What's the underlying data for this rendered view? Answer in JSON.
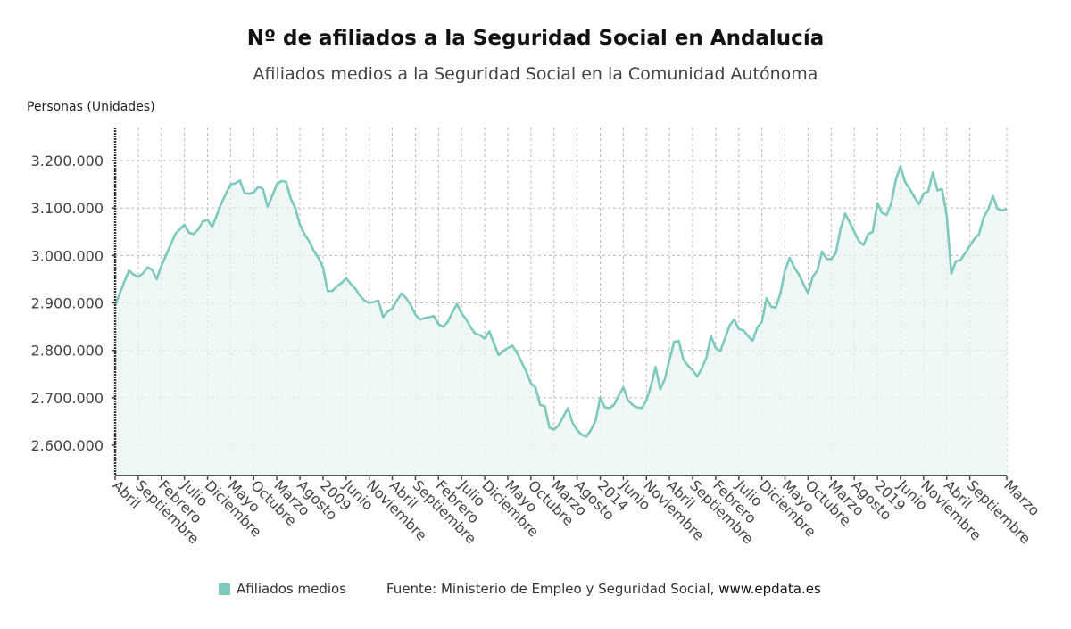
{
  "title": "Nº de afiliados a la Seguridad Social en Andalucía",
  "subtitle": "Afiliados medios a la Seguridad Social en la Comunidad Autónoma",
  "legend": {
    "label": "Afiliados medios",
    "color": "#7dc9bd"
  },
  "source": {
    "text": "Fuente: Ministerio de Empleo y Seguridad Social, ",
    "site": "www.epdata.es"
  },
  "chart_data": {
    "type": "area",
    "title": "Nº de afiliados a la Seguridad Social en Andalucía",
    "subtitle": "Afiliados medios a la Seguridad Social en la Comunidad Autónoma",
    "ylabel": "Personas (Unidades)",
    "xlabel": "",
    "ylim": [
      2540000,
      3270000
    ],
    "yticks": [
      2600000,
      2700000,
      2800000,
      2900000,
      3000000,
      3100000,
      3200000
    ],
    "ytick_labels": [
      "2.600.000",
      "2.700.000",
      "2.800.000",
      "2.900.000",
      "3.000.000",
      "3.100.000",
      "3.200.000"
    ],
    "grid": true,
    "legend_position": "bottom",
    "line_color": "#7dc9bd",
    "x_start": "Abril 2005",
    "x_end": "Marzo 2021",
    "x_tick_every_months": 5,
    "x_tick_labels": [
      "Abril",
      "Septiembre",
      "Febrero",
      "Julio",
      "Diciembre",
      "Mayo",
      "Octubre",
      "Marzo",
      "Agosto",
      "2009",
      "Junio",
      "Noviembre",
      "Abril",
      "Septiembre",
      "Febrero",
      "Julio",
      "Diciembre",
      "Mayo",
      "Octubre",
      "Marzo",
      "Agosto",
      "2014",
      "Junio",
      "Noviembre",
      "Abril",
      "Septiembre",
      "Febrero",
      "Julio",
      "Diciembre",
      "Mayo",
      "Octubre",
      "Marzo",
      "Agosto",
      "2019",
      "Junio",
      "Noviembre",
      "Abril",
      "Septiembre",
      "Marzo"
    ],
    "series": [
      {
        "name": "Afiliados medios",
        "values": [
          2895000,
          2920000,
          2945000,
          2968000,
          2960000,
          2955000,
          2962000,
          2975000,
          2970000,
          2950000,
          2978000,
          3000000,
          3022000,
          3045000,
          3055000,
          3065000,
          3048000,
          3045000,
          3055000,
          3072000,
          3075000,
          3060000,
          3085000,
          3110000,
          3130000,
          3150000,
          3152000,
          3158000,
          3132000,
          3130000,
          3133000,
          3145000,
          3140000,
          3103000,
          3125000,
          3150000,
          3157000,
          3155000,
          3120000,
          3100000,
          3065000,
          3045000,
          3030000,
          3010000,
          2995000,
          2975000,
          2925000,
          2925000,
          2935000,
          2942000,
          2952000,
          2940000,
          2930000,
          2915000,
          2905000,
          2900000,
          2902000,
          2905000,
          2870000,
          2882000,
          2888000,
          2905000,
          2920000,
          2910000,
          2895000,
          2875000,
          2865000,
          2868000,
          2870000,
          2872000,
          2855000,
          2850000,
          2860000,
          2880000,
          2898000,
          2878000,
          2865000,
          2848000,
          2835000,
          2832000,
          2825000,
          2840000,
          2815000,
          2790000,
          2798000,
          2805000,
          2810000,
          2795000,
          2775000,
          2755000,
          2730000,
          2722000,
          2685000,
          2682000,
          2637000,
          2633000,
          2642000,
          2660000,
          2678000,
          2648000,
          2632000,
          2622000,
          2618000,
          2632000,
          2652000,
          2700000,
          2680000,
          2678000,
          2685000,
          2705000,
          2722000,
          2695000,
          2685000,
          2680000,
          2678000,
          2695000,
          2725000,
          2765000,
          2718000,
          2740000,
          2780000,
          2818000,
          2820000,
          2780000,
          2768000,
          2758000,
          2745000,
          2762000,
          2785000,
          2830000,
          2805000,
          2798000,
          2825000,
          2852000,
          2865000,
          2845000,
          2842000,
          2830000,
          2820000,
          2848000,
          2860000,
          2910000,
          2892000,
          2890000,
          2920000,
          2968000,
          2995000,
          2975000,
          2960000,
          2940000,
          2920000,
          2955000,
          2968000,
          3008000,
          2993000,
          2992000,
          3005000,
          3055000,
          3088000,
          3070000,
          3050000,
          3030000,
          3022000,
          3045000,
          3050000,
          3110000,
          3090000,
          3085000,
          3110000,
          3160000,
          3188000,
          3155000,
          3140000,
          3123000,
          3108000,
          3130000,
          3135000,
          3175000,
          3137000,
          3140000,
          3085000,
          2962000,
          2988000,
          2990000,
          3005000,
          3020000,
          3035000,
          3045000,
          3080000,
          3098000,
          3125000,
          3098000,
          3095000,
          3098000
        ]
      }
    ]
  }
}
